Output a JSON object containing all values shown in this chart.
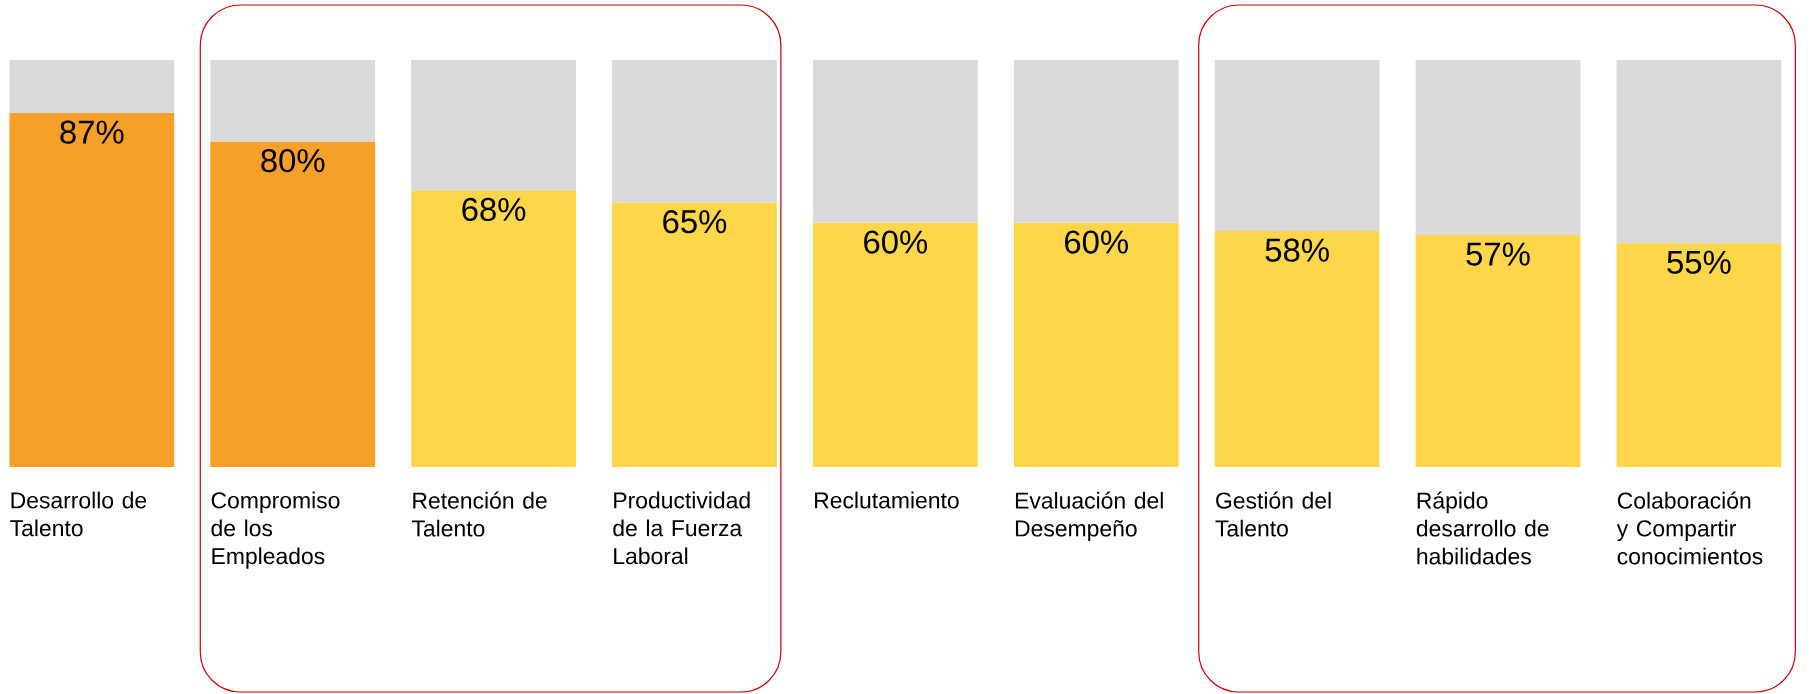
{
  "chart_data": {
    "type": "bar",
    "stacked": true,
    "categories": [
      "Desarrollo de Talento",
      "Compromiso de los Empleados",
      "Retención de Talento",
      "Productividad de la Fuerza Laboral",
      "Reclutamiento",
      "Evaluación del Desempeño",
      "Gestión del Talento",
      "Rápido desarrollo de habilidades",
      "Colaboración y Compartir conocimientos"
    ],
    "series": [
      {
        "colors": [
          "#f6a02a",
          "#f6a02a",
          "#fdd64a",
          "#fdd64a",
          "#fdd64a",
          "#fdd64a",
          "#fdd64a",
          "#fdd64a",
          "#fdd64a"
        ],
        "values": [
          87,
          80,
          68,
          65,
          60,
          60,
          58,
          57,
          55
        ],
        "value_labels": [
          "87%",
          "80%",
          "68%",
          "65%",
          "60%",
          "60%",
          "58%",
          "57%",
          "55%"
        ]
      },
      {
        "color": "#d9d9d9",
        "values": [
          13,
          20,
          32,
          35,
          40,
          40,
          42,
          43,
          45
        ]
      }
    ],
    "tick_labels": "x"
  }
}
